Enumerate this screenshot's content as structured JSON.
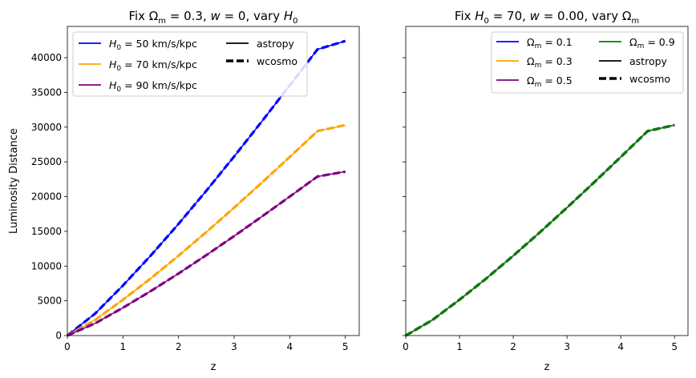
{
  "chart_data": [
    {
      "type": "line",
      "title": "Fix Ω_m = 0.3, w = 0, vary H_0",
      "xlabel": "z",
      "ylabel": "Luminosity Distance",
      "xlim": [
        0,
        5.25
      ],
      "ylim": [
        0,
        44500
      ],
      "xticks": [
        0,
        1,
        2,
        3,
        4,
        5
      ],
      "yticks": [
        0,
        5000,
        10000,
        15000,
        20000,
        25000,
        30000,
        35000,
        40000
      ],
      "grid": false,
      "legend_position": "top",
      "series": [
        {
          "name": "H_0 = 50 km/s/kpc",
          "color": "#0000ff",
          "x": [
            0,
            0.5,
            1,
            1.5,
            2,
            2.5,
            3,
            3.5,
            4,
            4.5,
            5
          ],
          "y": [
            0,
            3170,
            7210,
            11520,
            16080,
            20840,
            25780,
            30850,
            36000,
            41200,
            42400
          ]
        },
        {
          "name": "H_0 = 70 km/s/kpc",
          "color": "#ffa500",
          "x": [
            0,
            0.5,
            1,
            1.5,
            2,
            2.5,
            3,
            3.5,
            4,
            4.5,
            5
          ],
          "y": [
            0,
            2260,
            5150,
            8230,
            11490,
            14890,
            18410,
            22030,
            25710,
            29430,
            30300
          ]
        },
        {
          "name": "H_0 = 90 km/s/kpc",
          "color": "#800080",
          "x": [
            0,
            0.5,
            1,
            1.5,
            2,
            2.5,
            3,
            3.5,
            4,
            4.5,
            5
          ],
          "y": [
            0,
            1760,
            4000,
            6400,
            8930,
            11580,
            14320,
            17140,
            20000,
            22890,
            23600
          ]
        }
      ],
      "style_legend": [
        {
          "label": "astropy",
          "style": "solid"
        },
        {
          "label": "wcosmo",
          "style": "dashed"
        }
      ]
    },
    {
      "type": "line",
      "title": "Fix H_0 = 70, w = 0.00, vary Ω_m",
      "xlabel": "z",
      "ylabel": "",
      "xlim": [
        0,
        5.25
      ],
      "ylim": [
        0,
        44500
      ],
      "xticks": [
        0,
        1,
        2,
        3,
        4,
        5
      ],
      "yticks": [
        0,
        5000,
        10000,
        15000,
        20000,
        25000,
        30000,
        35000,
        40000
      ],
      "ytick_labels_visible": false,
      "grid": false,
      "legend_position": "top-right",
      "series": [
        {
          "name": "Ω_m = 0.1",
          "color": "#0000ff",
          "x": [
            0,
            0.5,
            1,
            1.5,
            2,
            2.5,
            3,
            3.5,
            4,
            4.5,
            5
          ],
          "y": [
            0,
            2260,
            5150,
            8230,
            11490,
            14890,
            18410,
            22030,
            25710,
            29430,
            30300
          ]
        },
        {
          "name": "Ω_m = 0.3",
          "color": "#ffa500",
          "x": [
            0,
            0.5,
            1,
            1.5,
            2,
            2.5,
            3,
            3.5,
            4,
            4.5,
            5
          ],
          "y": [
            0,
            2260,
            5150,
            8230,
            11490,
            14890,
            18410,
            22030,
            25710,
            29430,
            30300
          ]
        },
        {
          "name": "Ω_m = 0.5",
          "color": "#800080",
          "x": [
            0,
            0.5,
            1,
            1.5,
            2,
            2.5,
            3,
            3.5,
            4,
            4.5,
            5
          ],
          "y": [
            0,
            2260,
            5150,
            8230,
            11490,
            14890,
            18410,
            22030,
            25710,
            29430,
            30300
          ]
        },
        {
          "name": "Ω_m = 0.9",
          "color": "#008000",
          "x": [
            0,
            0.5,
            1,
            1.5,
            2,
            2.5,
            3,
            3.5,
            4,
            4.5,
            5
          ],
          "y": [
            0,
            2260,
            5150,
            8230,
            11490,
            14890,
            18410,
            22030,
            25710,
            29430,
            30300
          ]
        }
      ],
      "style_legend": [
        {
          "label": "astropy",
          "style": "solid"
        },
        {
          "label": "wcosmo",
          "style": "dashed"
        }
      ]
    }
  ]
}
